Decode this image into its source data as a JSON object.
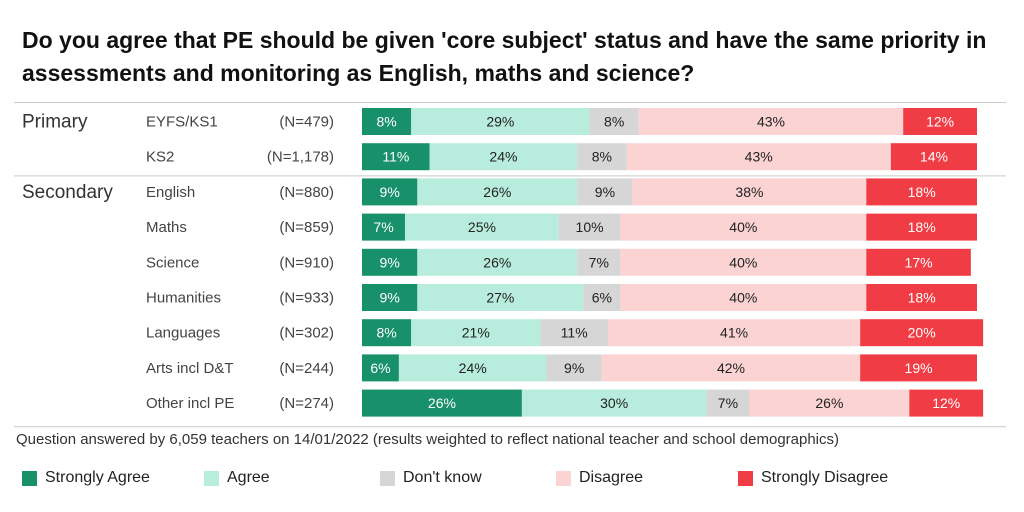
{
  "chart_data": {
    "type": "bar",
    "orientation": "horizontal-stacked-100",
    "title": "Do you agree that PE should be given 'core subject' status and have the same priority in assessments and monitoring as English, maths and science?",
    "groups": [
      {
        "label": "Primary",
        "rows": [
          {
            "label": "EYFS/KS1",
            "n": "(N=479)",
            "values": [
              8,
              29,
              8,
              43,
              12
            ]
          },
          {
            "label": "KS2",
            "n": "(N=1,178)",
            "values": [
              11,
              24,
              8,
              43,
              14
            ]
          }
        ]
      },
      {
        "label": "Secondary",
        "rows": [
          {
            "label": "English",
            "n": "(N=880)",
            "values": [
              9,
              26,
              9,
              38,
              18
            ]
          },
          {
            "label": "Maths",
            "n": "(N=859)",
            "values": [
              7,
              25,
              10,
              40,
              18
            ]
          },
          {
            "label": "Science",
            "n": "(N=910)",
            "values": [
              9,
              26,
              7,
              40,
              17
            ]
          },
          {
            "label": "Humanities",
            "n": "(N=933)",
            "values": [
              9,
              27,
              6,
              40,
              18
            ]
          },
          {
            "label": "Languages",
            "n": "(N=302)",
            "values": [
              8,
              21,
              11,
              41,
              20
            ]
          },
          {
            "label": "Arts incl D&T",
            "n": "(N=244)",
            "values": [
              6,
              24,
              9,
              42,
              19
            ]
          },
          {
            "label": "Other incl PE",
            "n": "(N=274)",
            "values": [
              26,
              30,
              7,
              26,
              12
            ]
          }
        ]
      }
    ],
    "series": [
      {
        "name": "Strongly Agree",
        "color": "#18906a",
        "text_color": "#ffffff"
      },
      {
        "name": "Agree",
        "color": "#b8ecdc",
        "text_color": "#222222"
      },
      {
        "name": "Don't know",
        "color": "#d6d6d6",
        "text_color": "#222222"
      },
      {
        "name": "Disagree",
        "color": "#fbd3d3",
        "text_color": "#222222"
      },
      {
        "name": "Strongly Disagree",
        "color": "#f03c44",
        "text_color": "#ffffff"
      }
    ],
    "value_suffix": "%",
    "legend_position": "bottom"
  },
  "footnote": "Question answered by 6,059 teachers on 14/01/2022 (results weighted to reflect national teacher and school demographics)"
}
